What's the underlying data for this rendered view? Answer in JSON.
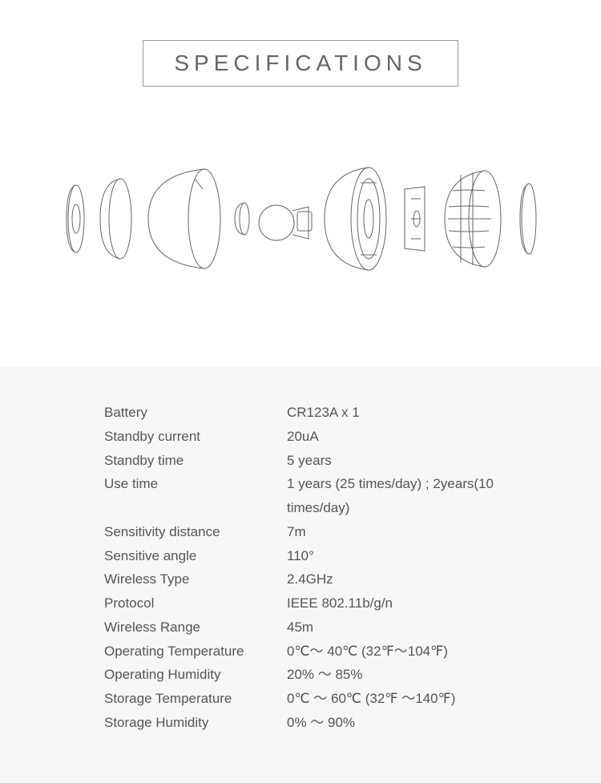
{
  "title": "SPECIFICATIONS",
  "colors": {
    "page_bg": "#ffffff",
    "panel_bg": "#f7f7f7",
    "title_border": "#999999",
    "title_text": "#666666",
    "spec_text": "#555555",
    "diagram_stroke": "#666666"
  },
  "typography": {
    "title_fontsize": 28,
    "title_letterspacing": 6,
    "spec_fontsize": 17,
    "spec_lineheight": 1.75
  },
  "diagram": {
    "type": "exploded-view-line-drawing",
    "description": "Exploded line drawing of a round motion sensor device: mounting base, ball joint, dome shell, sensor module, fresnel lens dome, flat lens cap",
    "stroke_color": "#666666",
    "stroke_width": 1,
    "background": "#ffffff"
  },
  "specs": [
    {
      "label": "Battery",
      "value": "CR123A x 1"
    },
    {
      "label": "Standby current",
      "value": "20uA"
    },
    {
      "label": "Standby time",
      "value": "5 years"
    },
    {
      "label": "Use time",
      "value": "1 years (25 times/day) ; 2years(10 times/day)"
    },
    {
      "label": "Sensitivity distance",
      "value": "7m"
    },
    {
      "label": "Sensitive angle",
      "value": "110°"
    },
    {
      "label": "Wireless Type",
      "value": "2.4GHz"
    },
    {
      "label": "Protocol",
      "value": "IEEE 802.11b/g/n"
    },
    {
      "label": "Wireless Range",
      "value": "45m"
    },
    {
      "label": "Operating Temperature",
      "value": "0℃～ 40℃  (32℉～104℉)"
    },
    {
      "label": "Operating Humidity",
      "value": "20% ～ 85%"
    },
    {
      "label": "Storage Temperature",
      "value": "0℃ ～ 60℃ (32℉ ～140℉)"
    },
    {
      "label": "Storage Humidity",
      "value": "0% ～ 90%"
    }
  ]
}
